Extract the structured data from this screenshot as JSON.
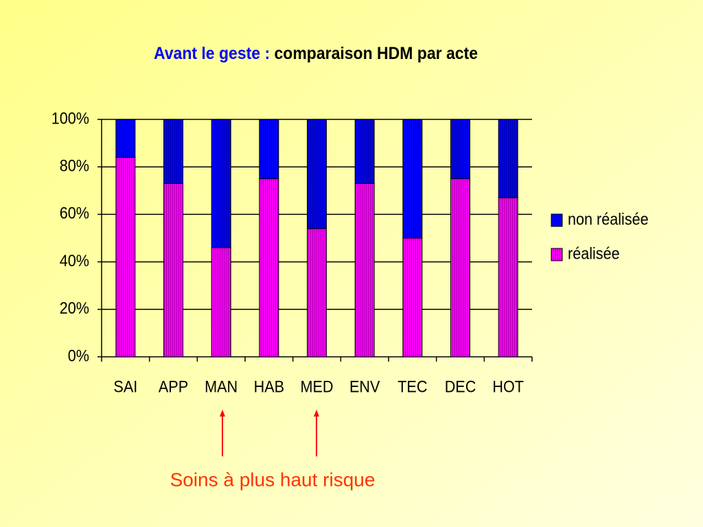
{
  "chart_data": {
    "type": "stacked_bar_100",
    "title_prefix": "Avant le geste :",
    "title": "comparaison HDM par acte",
    "categories": [
      "SAI",
      "APP",
      "MAN",
      "HAB",
      "MED",
      "ENV",
      "TEC",
      "DEC",
      "HOT"
    ],
    "series": [
      {
        "name": "non réalisée",
        "color": "#0000ff",
        "values": [
          16,
          27,
          54,
          25,
          46,
          27,
          50,
          25,
          33
        ]
      },
      {
        "name": "réalisée",
        "color": "#ff00ff",
        "values": [
          84,
          73,
          46,
          75,
          54,
          73,
          50,
          75,
          67
        ]
      }
    ],
    "ylim": [
      0,
      100
    ],
    "yticks": [
      {
        "value": 0,
        "label": "0%"
      },
      {
        "value": 20,
        "label": "20%"
      },
      {
        "value": 40,
        "label": "40%"
      },
      {
        "value": 60,
        "label": "60%"
      },
      {
        "value": 80,
        "label": "80%"
      },
      {
        "value": 100,
        "label": "100%"
      }
    ],
    "grid": true,
    "legend": "right",
    "annotation": "Soins à plus haut risque"
  }
}
